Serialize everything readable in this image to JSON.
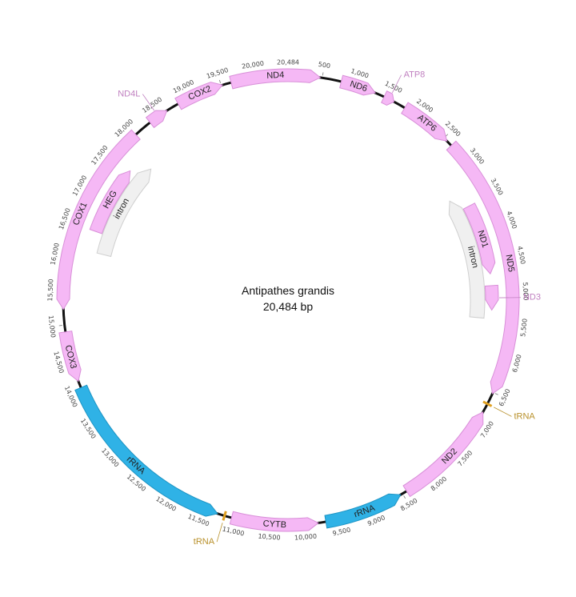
{
  "map": {
    "title": "Antipathes grandis",
    "length_label": "20,484 bp",
    "total_bp": 20484,
    "backbone_color": "#111111",
    "colors": {
      "gene": "#f5b8f5",
      "gene_stroke": "#d88fd8",
      "rrna": "#2fb2e6",
      "rrna_stroke": "#1d94c4",
      "intron": "#f0f0f0",
      "intron_stroke": "#cfcfcf",
      "trna": "#e0a020",
      "outer_label": "#c080c0",
      "trna_label": "#b8902a"
    },
    "ticks": [
      "20,484",
      "500",
      "1,000",
      "1,500",
      "2,000",
      "2,500",
      "3,000",
      "3,500",
      "4,000",
      "4,500",
      "5,000",
      "5,500",
      "6,000",
      "6,500",
      "7,000",
      "7,500",
      "8,000",
      "8,500",
      "9,000",
      "9,500",
      "10,000",
      "10,500",
      "11,000",
      "11,500",
      "12,000",
      "12,500",
      "13,000",
      "13,500",
      "14,000",
      "14,500",
      "15,000",
      "15,500",
      "16,000",
      "16,500",
      "17,000",
      "17,500",
      "18,000",
      "18,500",
      "19,000",
      "19,500",
      "20,000"
    ],
    "features": [
      {
        "label": "ND4",
        "type": "gene",
        "start": 19650,
        "end": 470,
        "strand": 1,
        "label_pos": "inside"
      },
      {
        "label": "ND6",
        "type": "gene",
        "start": 780,
        "end": 1300,
        "strand": 1,
        "label_pos": "inside"
      },
      {
        "label": "ATP8",
        "type": "gene",
        "start": 1440,
        "end": 1600,
        "strand": 1,
        "label_pos": "outside"
      },
      {
        "label": "ATP6",
        "type": "gene",
        "start": 1780,
        "end": 2560,
        "strand": 1,
        "label_pos": "inside"
      },
      {
        "label": "ND5",
        "type": "gene",
        "start": 2650,
        "end": 6520,
        "strand": 1,
        "label_pos": "inside"
      },
      {
        "label": "tRNA",
        "type": "trna",
        "start": 6650,
        "end": 6720,
        "strand": 1,
        "label_pos": "outside"
      },
      {
        "label": "ND2",
        "type": "gene",
        "start": 6820,
        "end": 8430,
        "strand": -1,
        "label_pos": "inside"
      },
      {
        "label": "rRNA",
        "type": "rrna",
        "start": 8530,
        "end": 9690,
        "strand": -1,
        "label_pos": "inside"
      },
      {
        "label": "CYTB",
        "type": "gene",
        "start": 9800,
        "end": 11070,
        "strand": -1,
        "label_pos": "inside"
      },
      {
        "label": "tRNA",
        "type": "trna",
        "start": 11140,
        "end": 11210,
        "strand": -1,
        "label_pos": "outside"
      },
      {
        "label": "rRNA",
        "type": "rrna",
        "start": 11280,
        "end": 14060,
        "strand": -1,
        "label_pos": "inside"
      },
      {
        "label": "COX3",
        "type": "gene",
        "start": 14160,
        "end": 14900,
        "strand": -1,
        "label_pos": "inside"
      },
      {
        "label": "COX1",
        "type": "gene",
        "start": 15230,
        "end": 18060,
        "strand": -1,
        "label_pos": "inside"
      },
      {
        "label": "ND4L",
        "type": "gene",
        "start": 18330,
        "end": 18630,
        "strand": 1,
        "label_pos": "outside"
      },
      {
        "label": "COX2",
        "type": "gene",
        "start": 18820,
        "end": 19520,
        "strand": 1,
        "label_pos": "inside"
      }
    ],
    "inner_features": [
      {
        "label": "intron",
        "type": "intron",
        "start": 3330,
        "end": 5420,
        "strand": -1,
        "track": 2
      },
      {
        "label": "ND1",
        "type": "gene",
        "start": 3560,
        "end": 4700,
        "strand": 1,
        "track": 1
      },
      {
        "label": "ND3",
        "type": "gene",
        "start": 4890,
        "end": 5280,
        "strand": 1,
        "track": 1,
        "label_pos": "outside"
      },
      {
        "label": "HEG",
        "type": "gene",
        "start": 16480,
        "end": 17600,
        "strand": 1,
        "track": 1
      },
      {
        "label": "intron",
        "type": "intron",
        "start": 16150,
        "end": 17850,
        "strand": 1,
        "track": 2
      }
    ]
  }
}
